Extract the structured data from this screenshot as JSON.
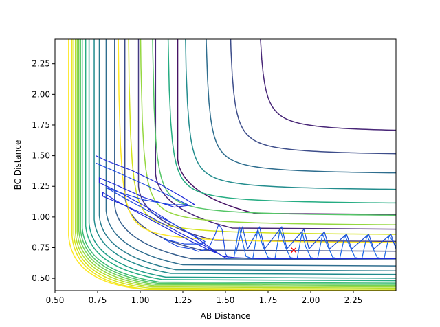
{
  "chart_data": {
    "type": "contour",
    "title": "",
    "xlabel": "AB Distance",
    "ylabel": "BC Distance",
    "xlim": [
      0.5,
      2.5
    ],
    "ylim": [
      0.4,
      2.45
    ],
    "xticks": [
      0.5,
      0.75,
      1.0,
      1.25,
      1.5,
      1.75,
      2.0,
      2.25
    ],
    "yticks": [
      0.5,
      0.75,
      1.0,
      1.25,
      1.5,
      1.75,
      2.0,
      2.25
    ],
    "grid": false,
    "colormap": "viridis",
    "contour_levels": [
      {
        "asym": 0.58,
        "min": 0.4,
        "color": "#fde725"
      },
      {
        "asym": 0.6,
        "min": 0.4,
        "color": "#ece51b"
      },
      {
        "asym": 0.61,
        "min": 0.41,
        "color": "#d2e21b"
      },
      {
        "asym": 0.62,
        "min": 0.42,
        "color": "#b5de2b"
      },
      {
        "asym": 0.63,
        "min": 0.43,
        "color": "#95d840"
      },
      {
        "asym": 0.64,
        "min": 0.44,
        "color": "#74d055"
      },
      {
        "asym": 0.65,
        "min": 0.45,
        "color": "#55c667"
      },
      {
        "asym": 0.66,
        "min": 0.46,
        "color": "#3bbb75"
      },
      {
        "asym": 0.68,
        "min": 0.48,
        "color": "#25ac82"
      },
      {
        "asym": 0.7,
        "min": 0.5,
        "color": "#1e9c89"
      },
      {
        "asym": 0.73,
        "min": 0.53,
        "color": "#228c8d"
      },
      {
        "asym": 0.76,
        "min": 0.56,
        "color": "#287c8e"
      },
      {
        "asym": 0.8,
        "min": 0.6,
        "color": "#2e6d8e"
      },
      {
        "asym": 0.85,
        "min": 0.65,
        "color": "#355e8d"
      },
      {
        "asym": 0.91,
        "min": 0.72,
        "color": "#3d4d8a"
      },
      {
        "asym": 0.99,
        "min": 0.8,
        "color": "#443a83"
      },
      {
        "asym": 1.09,
        "min": 0.9,
        "color": "#482677"
      },
      {
        "asym": 1.22,
        "min": 1.02,
        "color": "#471365"
      }
    ],
    "outer_contours": [
      {
        "asym": 0.86,
        "color": "#fde725"
      },
      {
        "asym": 0.92,
        "color": "#d2e21b"
      },
      {
        "asym": 0.99,
        "color": "#95d840"
      },
      {
        "asym": 1.06,
        "color": "#55c667"
      },
      {
        "asym": 1.15,
        "color": "#25ac82"
      },
      {
        "asym": 1.25,
        "color": "#228c8d"
      },
      {
        "asym": 1.37,
        "color": "#2e6d8e"
      },
      {
        "asym": 1.51,
        "color": "#3d4d8a"
      },
      {
        "asym": 1.68,
        "color": "#482677"
      }
    ],
    "series": [
      {
        "color": "#1f2bd9",
        "points": [
          [
            0.74,
            1.5
          ],
          [
            0.8,
            1.46
          ],
          [
            0.95,
            1.38
          ],
          [
            1.1,
            1.28
          ],
          [
            1.25,
            1.16
          ],
          [
            1.32,
            1.1
          ],
          [
            1.2,
            1.08
          ],
          [
            1.02,
            1.16
          ],
          [
            0.86,
            1.26
          ],
          [
            0.76,
            1.32
          ],
          [
            0.76,
            1.28
          ],
          [
            0.88,
            1.2
          ],
          [
            1.04,
            1.08
          ],
          [
            1.2,
            0.94
          ],
          [
            1.32,
            0.84
          ],
          [
            1.4,
            0.76
          ],
          [
            1.46,
            0.7
          ],
          [
            1.42,
            0.72
          ],
          [
            1.3,
            0.8
          ],
          [
            1.14,
            0.92
          ],
          [
            0.98,
            1.04
          ],
          [
            0.85,
            1.14
          ],
          [
            0.78,
            1.2
          ],
          [
            0.78,
            1.17
          ],
          [
            0.9,
            1.1
          ],
          [
            1.06,
            1.0
          ],
          [
            1.22,
            0.88
          ],
          [
            1.36,
            0.78
          ],
          [
            1.46,
            0.7
          ],
          [
            1.51,
            0.66
          ]
        ]
      },
      {
        "color": "#1f4be0",
        "points": [
          [
            0.74,
            1.44
          ],
          [
            0.84,
            1.38
          ],
          [
            1.0,
            1.28
          ],
          [
            1.16,
            1.18
          ],
          [
            1.28,
            1.1
          ],
          [
            1.18,
            1.1
          ],
          [
            1.02,
            1.14
          ],
          [
            0.88,
            1.2
          ],
          [
            0.8,
            1.24
          ],
          [
            0.9,
            1.16
          ],
          [
            1.06,
            1.04
          ],
          [
            1.2,
            0.94
          ],
          [
            1.3,
            0.86
          ],
          [
            1.38,
            0.8
          ],
          [
            1.36,
            0.78
          ],
          [
            1.26,
            0.78
          ],
          [
            1.14,
            0.82
          ],
          [
            1.22,
            0.76
          ],
          [
            1.3,
            0.74
          ],
          [
            1.34,
            0.72
          ],
          [
            1.4,
            0.74
          ],
          [
            1.44,
            0.86
          ],
          [
            1.46,
            0.94
          ],
          [
            1.48,
            0.9
          ],
          [
            1.5,
            0.7
          ],
          [
            1.52,
            0.66
          ]
        ]
      },
      {
        "color": "#1a66e8",
        "points": [
          [
            1.51,
            0.66
          ],
          [
            1.55,
            0.67
          ],
          [
            1.58,
            0.92
          ],
          [
            1.6,
            0.8
          ],
          [
            1.62,
            0.68
          ],
          [
            1.66,
            0.66
          ],
          [
            1.69,
            0.9
          ],
          [
            1.72,
            0.76
          ],
          [
            1.75,
            0.67
          ],
          [
            1.79,
            0.66
          ],
          [
            1.82,
            0.9
          ],
          [
            1.85,
            0.76
          ],
          [
            1.88,
            0.67
          ],
          [
            1.92,
            0.66
          ],
          [
            1.95,
            0.88
          ],
          [
            1.97,
            0.76
          ],
          [
            2.0,
            0.67
          ],
          [
            2.04,
            0.66
          ],
          [
            2.07,
            0.86
          ],
          [
            2.1,
            0.76
          ],
          [
            2.13,
            0.67
          ],
          [
            2.17,
            0.66
          ],
          [
            2.2,
            0.85
          ],
          [
            2.23,
            0.76
          ],
          [
            2.26,
            0.67
          ],
          [
            2.3,
            0.66
          ],
          [
            2.33,
            0.85
          ],
          [
            2.36,
            0.76
          ],
          [
            2.39,
            0.67
          ],
          [
            2.43,
            0.66
          ],
          [
            2.46,
            0.85
          ],
          [
            2.5,
            0.76
          ]
        ]
      },
      {
        "color": "#1c4fd4",
        "points": [
          [
            1.56,
            0.7
          ],
          [
            1.6,
            0.92
          ],
          [
            1.63,
            0.74
          ],
          [
            1.7,
            0.92
          ],
          [
            1.73,
            0.74
          ],
          [
            1.83,
            0.92
          ],
          [
            1.86,
            0.74
          ],
          [
            1.96,
            0.9
          ],
          [
            1.99,
            0.74
          ],
          [
            2.08,
            0.88
          ],
          [
            2.11,
            0.74
          ],
          [
            2.21,
            0.86
          ],
          [
            2.24,
            0.74
          ],
          [
            2.34,
            0.86
          ],
          [
            2.37,
            0.74
          ],
          [
            2.47,
            0.86
          ],
          [
            2.5,
            0.74
          ]
        ]
      },
      {
        "color": "#1f2bd9",
        "points": [
          [
            1.48,
            0.68
          ],
          [
            1.55,
            0.67
          ],
          [
            1.7,
            0.66
          ],
          [
            1.9,
            0.66
          ],
          [
            2.1,
            0.66
          ],
          [
            2.3,
            0.66
          ],
          [
            2.5,
            0.66
          ]
        ]
      }
    ],
    "marker": {
      "x": 1.9,
      "y": 0.73,
      "color": "#ff0000",
      "symbol": "x"
    }
  }
}
